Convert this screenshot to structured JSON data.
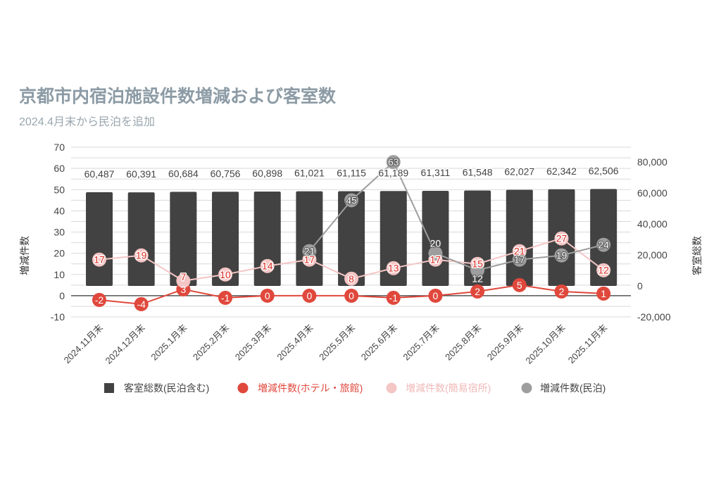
{
  "chart_data": {
    "type": "bar",
    "title": "京都市内宿泊施設件数増減および客室数",
    "subtitle": "2024.4月末から民泊を追加",
    "ylabel": "増減件数",
    "ylabel_right": "客室総数",
    "ylim": [
      -10,
      70
    ],
    "ylim_right": [
      -20000,
      89500
    ],
    "grid": true,
    "legend": "bottom",
    "yticks": [
      {
        "value": 70,
        "label": "70"
      },
      {
        "value": 60,
        "label": "60"
      },
      {
        "value": 50,
        "label": "50"
      },
      {
        "value": 40,
        "label": "40"
      },
      {
        "value": 30,
        "label": "30"
      },
      {
        "value": 20,
        "label": "20"
      },
      {
        "value": 10,
        "label": "10"
      },
      {
        "value": 0,
        "label": "0"
      },
      {
        "value": -10,
        "label": "-10"
      }
    ],
    "yticks_right": [
      {
        "value": 80000,
        "label": "80,000"
      },
      {
        "value": 60000,
        "label": "60,000"
      },
      {
        "value": 40000,
        "label": "40,000"
      },
      {
        "value": 20000,
        "label": "20,000"
      },
      {
        "value": 0,
        "label": "0"
      },
      {
        "value": -20000,
        "label": "-20,000"
      }
    ],
    "categories": [
      "2024.11月末",
      "2024.12月末",
      "2025.1月末",
      "2025.2月末",
      "2025.3月末",
      "2025.4月末",
      "2025.5月末",
      "2025.6月末",
      "2025.7月末",
      "2025.8月末",
      "2025.9月末",
      "2025.10月末",
      "2025.11月末"
    ],
    "series": [
      {
        "name": "客室総数(民泊含む)",
        "type": "bar",
        "axis": "right",
        "color": "#424242",
        "legend_text_color": "#444444",
        "values": [
          60487,
          60391,
          60684,
          60756,
          60898,
          61021,
          61115,
          61189,
          61311,
          61548,
          62027,
          62342,
          62506
        ],
        "labels": [
          "60,487",
          "60,391",
          "60,684",
          "60,756",
          "60,898",
          "61,021",
          "61,115",
          "61,189",
          "61,311",
          "61,548",
          "62,027",
          "62,342",
          "62,506"
        ]
      },
      {
        "name": "増減件数(ホテル・旅館)",
        "type": "line",
        "axis": "left",
        "color": "#e0483c",
        "legend_text_color": "#e0483c",
        "label_color": "#ffffff",
        "label_outline": "#e0483c",
        "values": [
          -2,
          -4,
          3,
          -1,
          0,
          0,
          0,
          -1,
          0,
          2,
          5,
          2,
          1
        ]
      },
      {
        "name": "増減件数(簡易宿所)",
        "type": "line",
        "axis": "left",
        "color": "#f4c6c5",
        "legend_text_color": "#f0b9b8",
        "label_color": "#d8281f",
        "label_outline": "#ffffff",
        "values": [
          17,
          19,
          7,
          10,
          14,
          17,
          8,
          13,
          17,
          15,
          21,
          27,
          12
        ]
      },
      {
        "name": "増減件数(民泊)",
        "type": "line",
        "axis": "left",
        "color": "#9e9e9e",
        "legend_text_color": "#444444",
        "label_color": "#ffffff",
        "label_outline": "#555555",
        "values": [
          null,
          null,
          null,
          null,
          null,
          21,
          45,
          63,
          20,
          12,
          17,
          19,
          24
        ]
      }
    ]
  }
}
